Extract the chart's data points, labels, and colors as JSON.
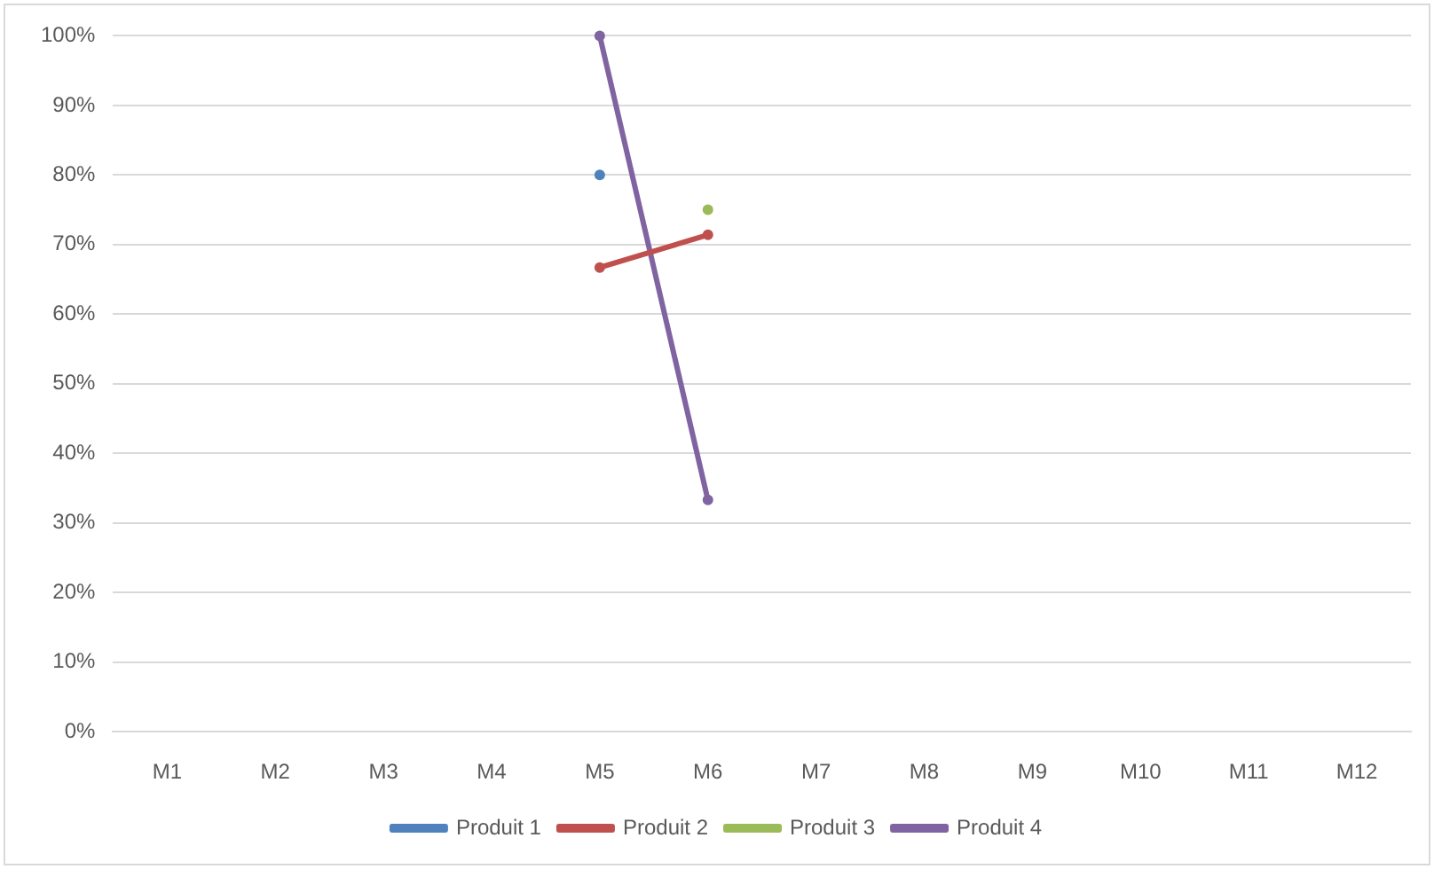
{
  "chart_data": {
    "type": "line",
    "categories": [
      "M1",
      "M2",
      "M3",
      "M4",
      "M5",
      "M6",
      "M7",
      "M8",
      "M9",
      "M10",
      "M11",
      "M12"
    ],
    "series": [
      {
        "name": "Produit 1",
        "color": "#4f81bd",
        "values": [
          null,
          null,
          null,
          null,
          80,
          null,
          null,
          null,
          null,
          null,
          null,
          null
        ]
      },
      {
        "name": "Produit 2",
        "color": "#c0504d",
        "values": [
          null,
          null,
          null,
          null,
          66.7,
          71.4,
          null,
          null,
          null,
          null,
          null,
          null
        ]
      },
      {
        "name": "Produit 3",
        "color": "#9bbb59",
        "values": [
          null,
          null,
          null,
          null,
          null,
          75,
          null,
          null,
          null,
          null,
          null,
          null
        ]
      },
      {
        "name": "Produit 4",
        "color": "#8064a2",
        "values": [
          null,
          null,
          null,
          null,
          100,
          33.3,
          null,
          null,
          null,
          null,
          null,
          null
        ]
      }
    ],
    "ylim": [
      0,
      100
    ],
    "yticks": [
      {
        "value": 0,
        "label": "0%"
      },
      {
        "value": 10,
        "label": "10%"
      },
      {
        "value": 20,
        "label": "20%"
      },
      {
        "value": 30,
        "label": "30%"
      },
      {
        "value": 40,
        "label": "40%"
      },
      {
        "value": 50,
        "label": "50%"
      },
      {
        "value": 60,
        "label": "60%"
      },
      {
        "value": 70,
        "label": "70%"
      },
      {
        "value": 80,
        "label": "80%"
      },
      {
        "value": 90,
        "label": "90%"
      },
      {
        "value": 100,
        "label": "100%"
      }
    ],
    "grid": "y",
    "legend": "bottom",
    "marker": "circle",
    "line_style": "solid"
  }
}
